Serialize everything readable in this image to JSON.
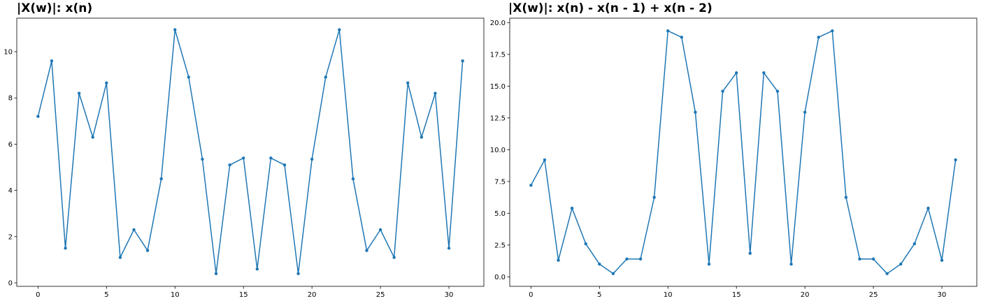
{
  "chart_data": [
    {
      "type": "line",
      "title": "|X(w)|: x(n)",
      "xlabel": "",
      "ylabel": "",
      "xlim": [
        -1.55,
        32.55
      ],
      "ylim": [
        -0.15,
        11.45
      ],
      "xticks": [
        0,
        5,
        10,
        15,
        20,
        25,
        30
      ],
      "yticks": [
        0,
        2,
        4,
        6,
        8,
        10
      ],
      "ytick_labels": [
        "0",
        "2",
        "4",
        "6",
        "8",
        "10"
      ],
      "grid": false,
      "color": "#1f77b4",
      "marker": "point",
      "series": [
        {
          "x": [
            0,
            1,
            2,
            3,
            4,
            5,
            6,
            7,
            8,
            9,
            10,
            11,
            12,
            13,
            14,
            15,
            16,
            17,
            18,
            19,
            20,
            21,
            22,
            23,
            24,
            25,
            26,
            27,
            28,
            29,
            30,
            31
          ],
          "y": [
            7.2,
            9.6,
            1.5,
            8.2,
            6.3,
            8.65,
            1.1,
            2.3,
            1.4,
            4.5,
            10.95,
            8.9,
            5.35,
            0.4,
            5.1,
            5.4,
            0.6,
            5.4,
            5.1,
            0.4,
            5.35,
            8.9,
            10.95,
            4.5,
            1.4,
            2.3,
            1.1,
            8.65,
            6.3,
            8.2,
            1.5,
            9.6
          ]
        }
      ]
    },
    {
      "type": "line",
      "title": "|X(w)|: x(n) - x(n - 1) + x(n - 2)",
      "xlabel": "",
      "ylabel": "",
      "xlim": [
        -1.55,
        32.55
      ],
      "ylim": [
        -0.75,
        20.35
      ],
      "xticks": [
        0,
        5,
        10,
        15,
        20,
        25,
        30
      ],
      "yticks": [
        0,
        2.5,
        5,
        7.5,
        10,
        12.5,
        15,
        17.5,
        20
      ],
      "ytick_labels": [
        "0.0",
        "2.5",
        "5.0",
        "7.5",
        "10.0",
        "12.5",
        "15.0",
        "17.5",
        "20.0"
      ],
      "grid": false,
      "color": "#1f77b4",
      "marker": "point",
      "series": [
        {
          "x": [
            0,
            1,
            2,
            3,
            4,
            5,
            6,
            7,
            8,
            9,
            10,
            11,
            12,
            13,
            14,
            15,
            16,
            17,
            18,
            19,
            20,
            21,
            22,
            23,
            24,
            25,
            26,
            27,
            28,
            29,
            30,
            31
          ],
          "y": [
            7.2,
            9.2,
            1.3,
            5.4,
            2.6,
            1.0,
            0.25,
            1.4,
            1.4,
            6.25,
            19.35,
            18.85,
            12.95,
            1.0,
            14.6,
            16.05,
            1.85,
            16.05,
            14.6,
            1.0,
            12.95,
            18.85,
            19.35,
            6.25,
            1.4,
            1.4,
            0.25,
            1.0,
            2.6,
            5.4,
            1.3,
            9.2
          ]
        }
      ]
    }
  ]
}
